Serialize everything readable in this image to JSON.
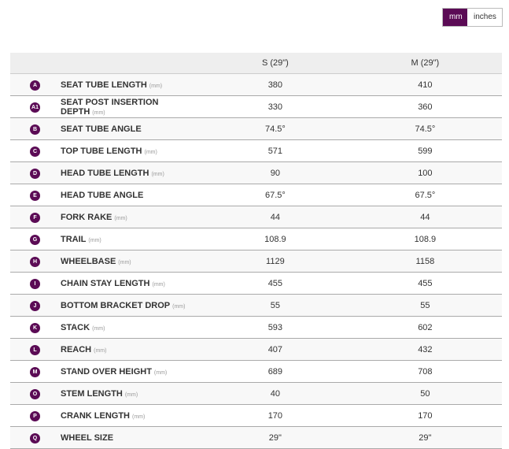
{
  "units_toggle": {
    "mm": "mm",
    "inches": "inches",
    "selected": "mm",
    "accent": "#5b0b55"
  },
  "columns": [
    "S (29\")",
    "M (29\")"
  ],
  "rows": [
    {
      "id": "A",
      "label": "SEAT TUBE LENGTH",
      "unit": "(mm)",
      "s": "380",
      "m": "410"
    },
    {
      "id": "A1",
      "label": "SEAT POST INSERTION DEPTH",
      "unit": "(mm)",
      "s": "330",
      "m": "360"
    },
    {
      "id": "B",
      "label": "SEAT TUBE ANGLE",
      "unit": "",
      "s": "74.5°",
      "m": "74.5°"
    },
    {
      "id": "C",
      "label": "TOP TUBE LENGTH",
      "unit": "(mm)",
      "s": "571",
      "m": "599"
    },
    {
      "id": "D",
      "label": "HEAD TUBE LENGTH",
      "unit": "(mm)",
      "s": "90",
      "m": "100"
    },
    {
      "id": "E",
      "label": "HEAD TUBE ANGLE",
      "unit": "",
      "s": "67.5°",
      "m": "67.5°"
    },
    {
      "id": "F",
      "label": "FORK RAKE",
      "unit": "(mm)",
      "s": "44",
      "m": "44"
    },
    {
      "id": "G",
      "label": "TRAIL",
      "unit": "(mm)",
      "s": "108.9",
      "m": "108.9"
    },
    {
      "id": "H",
      "label": "WHEELBASE",
      "unit": "(mm)",
      "s": "1129",
      "m": "1158"
    },
    {
      "id": "I",
      "label": "CHAIN STAY LENGTH",
      "unit": "(mm)",
      "s": "455",
      "m": "455"
    },
    {
      "id": "J",
      "label": "BOTTOM BRACKET DROP",
      "unit": "(mm)",
      "s": "55",
      "m": "55"
    },
    {
      "id": "K",
      "label": "STACK",
      "unit": "(mm)",
      "s": "593",
      "m": "602"
    },
    {
      "id": "L",
      "label": "REACH",
      "unit": "(mm)",
      "s": "407",
      "m": "432"
    },
    {
      "id": "M",
      "label": "STAND OVER HEIGHT",
      "unit": "(mm)",
      "s": "689",
      "m": "708"
    },
    {
      "id": "O",
      "label": "STEM LENGTH",
      "unit": "(mm)",
      "s": "40",
      "m": "50"
    },
    {
      "id": "P",
      "label": "CRANK LENGTH",
      "unit": "(mm)",
      "s": "170",
      "m": "170"
    },
    {
      "id": "Q",
      "label": "WHEEL SIZE",
      "unit": "",
      "s": "29\"",
      "m": "29\""
    }
  ]
}
